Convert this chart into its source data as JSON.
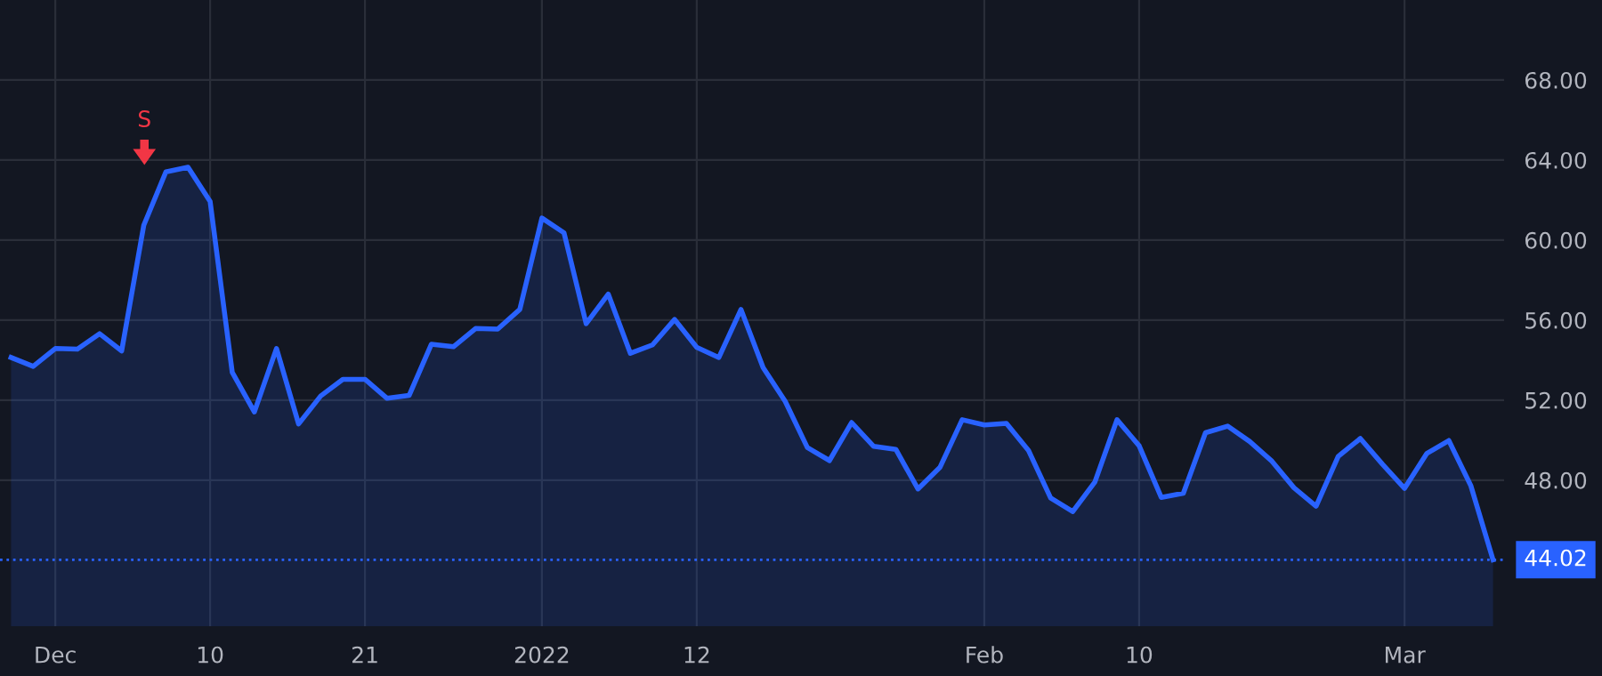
{
  "chart_data": {
    "type": "area",
    "categories": [
      null,
      null,
      "Dec",
      null,
      null,
      null,
      null,
      null,
      null,
      "10",
      null,
      null,
      null,
      null,
      null,
      null,
      "21",
      null,
      null,
      null,
      null,
      null,
      null,
      null,
      "2022",
      null,
      null,
      null,
      null,
      null,
      null,
      "12",
      null,
      null,
      null,
      null,
      null,
      null,
      null,
      null,
      null,
      null,
      null,
      null,
      "Feb",
      null,
      null,
      null,
      null,
      null,
      null,
      "10",
      null,
      null,
      null,
      null,
      null,
      null,
      null,
      null,
      null,
      null,
      null,
      "Mar",
      null,
      null,
      null,
      null
    ],
    "series": [
      {
        "color": "#2962ff",
        "values": [
          54.13,
          53.69,
          54.58,
          54.55,
          55.32,
          54.46,
          60.74,
          63.41,
          63.64,
          61.93,
          53.39,
          51.41,
          54.58,
          50.81,
          52.21,
          53.04,
          53.04,
          52.09,
          52.24,
          54.79,
          54.67,
          55.58,
          55.55,
          56.53,
          61.1,
          60.36,
          55.82,
          57.3,
          54.34,
          54.76,
          56.03,
          54.64,
          54.13,
          56.53,
          53.63,
          51.94,
          49.63,
          48.98,
          50.88,
          49.69,
          49.54,
          47.56,
          48.65,
          51.02,
          50.76,
          50.84,
          49.48,
          47.11,
          46.43,
          47.91,
          51.02,
          49.72,
          47.14,
          47.35,
          50.37,
          50.7,
          49.93,
          48.95,
          47.62,
          46.7,
          49.19,
          50.08,
          48.8,
          47.59,
          49.33,
          49.98,
          47.71,
          44.02
        ]
      }
    ],
    "ylim": [
      40.7,
      72
    ],
    "yticks": [
      {
        "value": 48,
        "label": "48.00"
      },
      {
        "value": 52,
        "label": "52.00"
      },
      {
        "value": 56,
        "label": "56.00"
      },
      {
        "value": 60,
        "label": "60.00"
      },
      {
        "value": 64,
        "label": "64.00"
      },
      {
        "value": 68,
        "label": "68.00"
      }
    ],
    "ref_lines": [
      {
        "axis": "y",
        "value": 44.02,
        "label": "44.02",
        "color": "#2962ff",
        "line_style": "dotted"
      }
    ],
    "annotations": [
      "S"
    ],
    "grid": true
  }
}
